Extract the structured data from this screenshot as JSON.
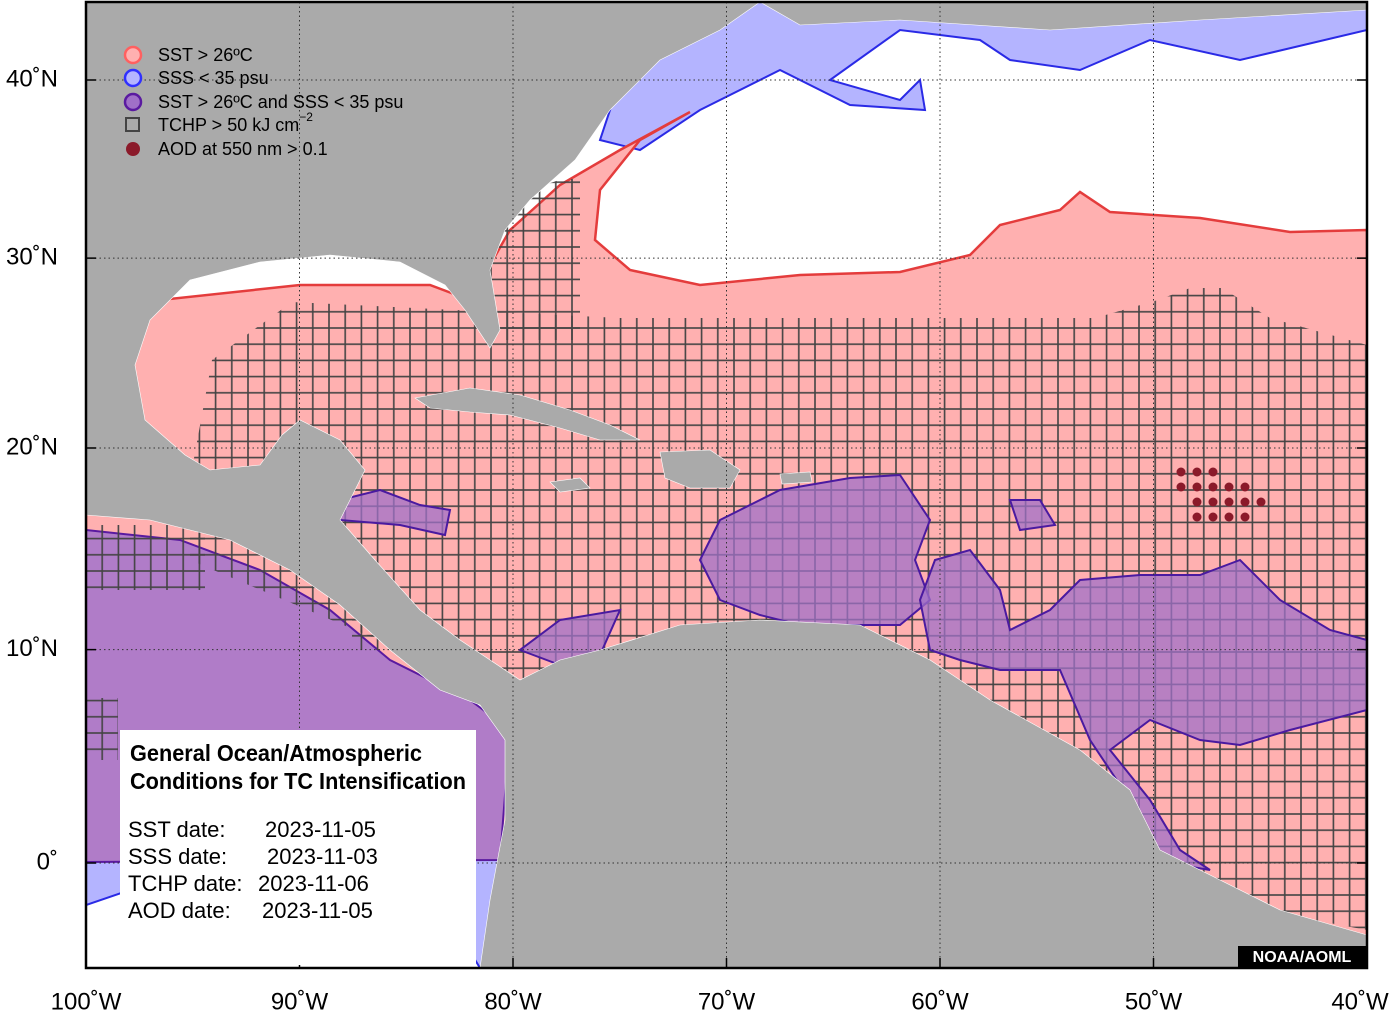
{
  "map": {
    "xticks": [
      {
        "value": -100,
        "label": "100˚W"
      },
      {
        "value": -90,
        "label": "90˚W"
      },
      {
        "value": -80,
        "label": "80˚W"
      },
      {
        "value": -70,
        "label": "70˚W"
      },
      {
        "value": -60,
        "label": "60˚W"
      },
      {
        "value": -50,
        "label": "50˚W"
      },
      {
        "value": -40,
        "label": "40˚W"
      }
    ],
    "yticks": [
      {
        "value": 40,
        "label": "40˚N"
      },
      {
        "value": 30,
        "label": "30˚N"
      },
      {
        "value": 20,
        "label": "20˚N"
      },
      {
        "value": 10,
        "label": "10˚N"
      },
      {
        "value": 0,
        "label": "0˚"
      }
    ],
    "credit": "NOAA/AOML"
  },
  "legend": [
    {
      "text": "SST > 26ºC"
    },
    {
      "text": "SSS < 35 psu"
    },
    {
      "text": "SST > 26ºC and SSS < 35 psu"
    },
    {
      "text": "TCHP > 50 kJ cm",
      "superscript": "−2"
    },
    {
      "text": "AOD at 550 nm > 0.1"
    }
  ],
  "info_box": {
    "title": [
      "General Ocean/Atmospheric",
      "Conditions for TC Intensification"
    ],
    "dates": [
      {
        "label": "SST date:",
        "value": "2023-11-05"
      },
      {
        "label": "SSS date:",
        "value": "2023-11-03"
      },
      {
        "label": "TCHP date:",
        "value": "2023-11-06"
      },
      {
        "label": "AOD date:",
        "value": "2023-11-05"
      }
    ]
  }
}
